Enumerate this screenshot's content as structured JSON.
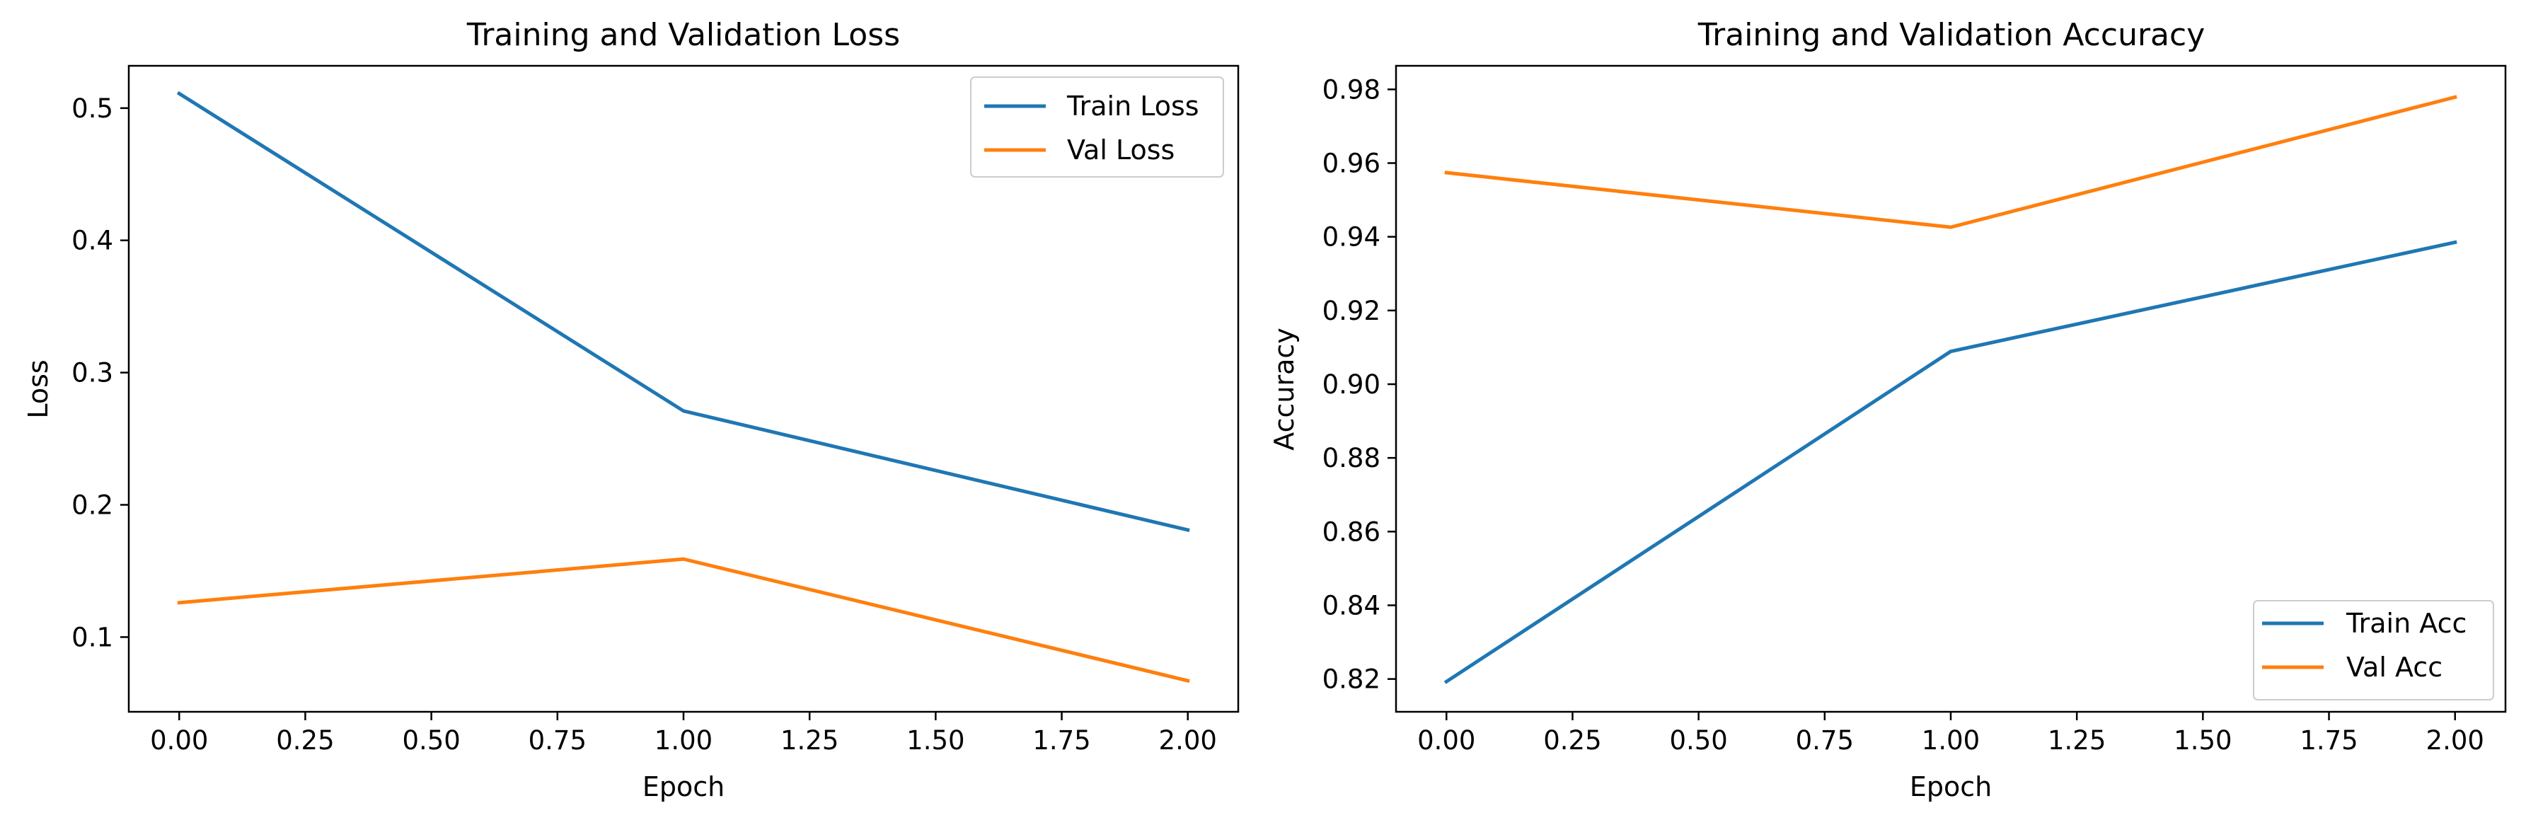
{
  "chart_data": [
    {
      "type": "line",
      "title": "Training and Validation Loss",
      "xlabel": "Epoch",
      "ylabel": "Loss",
      "x": [
        0,
        1,
        2
      ],
      "xlim": [
        -0.1,
        2.1
      ],
      "ylim": [
        0.0435,
        0.532
      ],
      "xticks": [
        "0.00",
        "0.25",
        "0.50",
        "0.75",
        "1.00",
        "1.25",
        "1.50",
        "1.75",
        "2.00"
      ],
      "yticks": [
        "0.1",
        "0.2",
        "0.3",
        "0.4",
        "0.5"
      ],
      "legend_placement": "upper right",
      "series": [
        {
          "name": "Train Loss",
          "color": "#1f77b4",
          "values": [
            0.511,
            0.271,
            0.181
          ]
        },
        {
          "name": "Val Loss",
          "color": "#ff7f0e",
          "values": [
            0.126,
            0.159,
            0.067
          ]
        }
      ]
    },
    {
      "type": "line",
      "title": "Training and Validation Accuracy",
      "xlabel": "Epoch",
      "ylabel": "Accuracy",
      "x": [
        0,
        1,
        2
      ],
      "xlim": [
        -0.1,
        2.1
      ],
      "ylim": [
        0.8111,
        0.9864
      ],
      "xticks": [
        "0.00",
        "0.25",
        "0.50",
        "0.75",
        "1.00",
        "1.25",
        "1.50",
        "1.75",
        "2.00"
      ],
      "yticks": [
        "0.82",
        "0.84",
        "0.86",
        "0.88",
        "0.90",
        "0.92",
        "0.94",
        "0.96",
        "0.98"
      ],
      "legend_placement": "lower right",
      "series": [
        {
          "name": "Train Acc",
          "color": "#1f77b4",
          "values": [
            0.8193,
            0.9089,
            0.9385
          ]
        },
        {
          "name": "Val Acc",
          "color": "#ff7f0e",
          "values": [
            0.9574,
            0.9426,
            0.9779
          ]
        }
      ]
    }
  ]
}
